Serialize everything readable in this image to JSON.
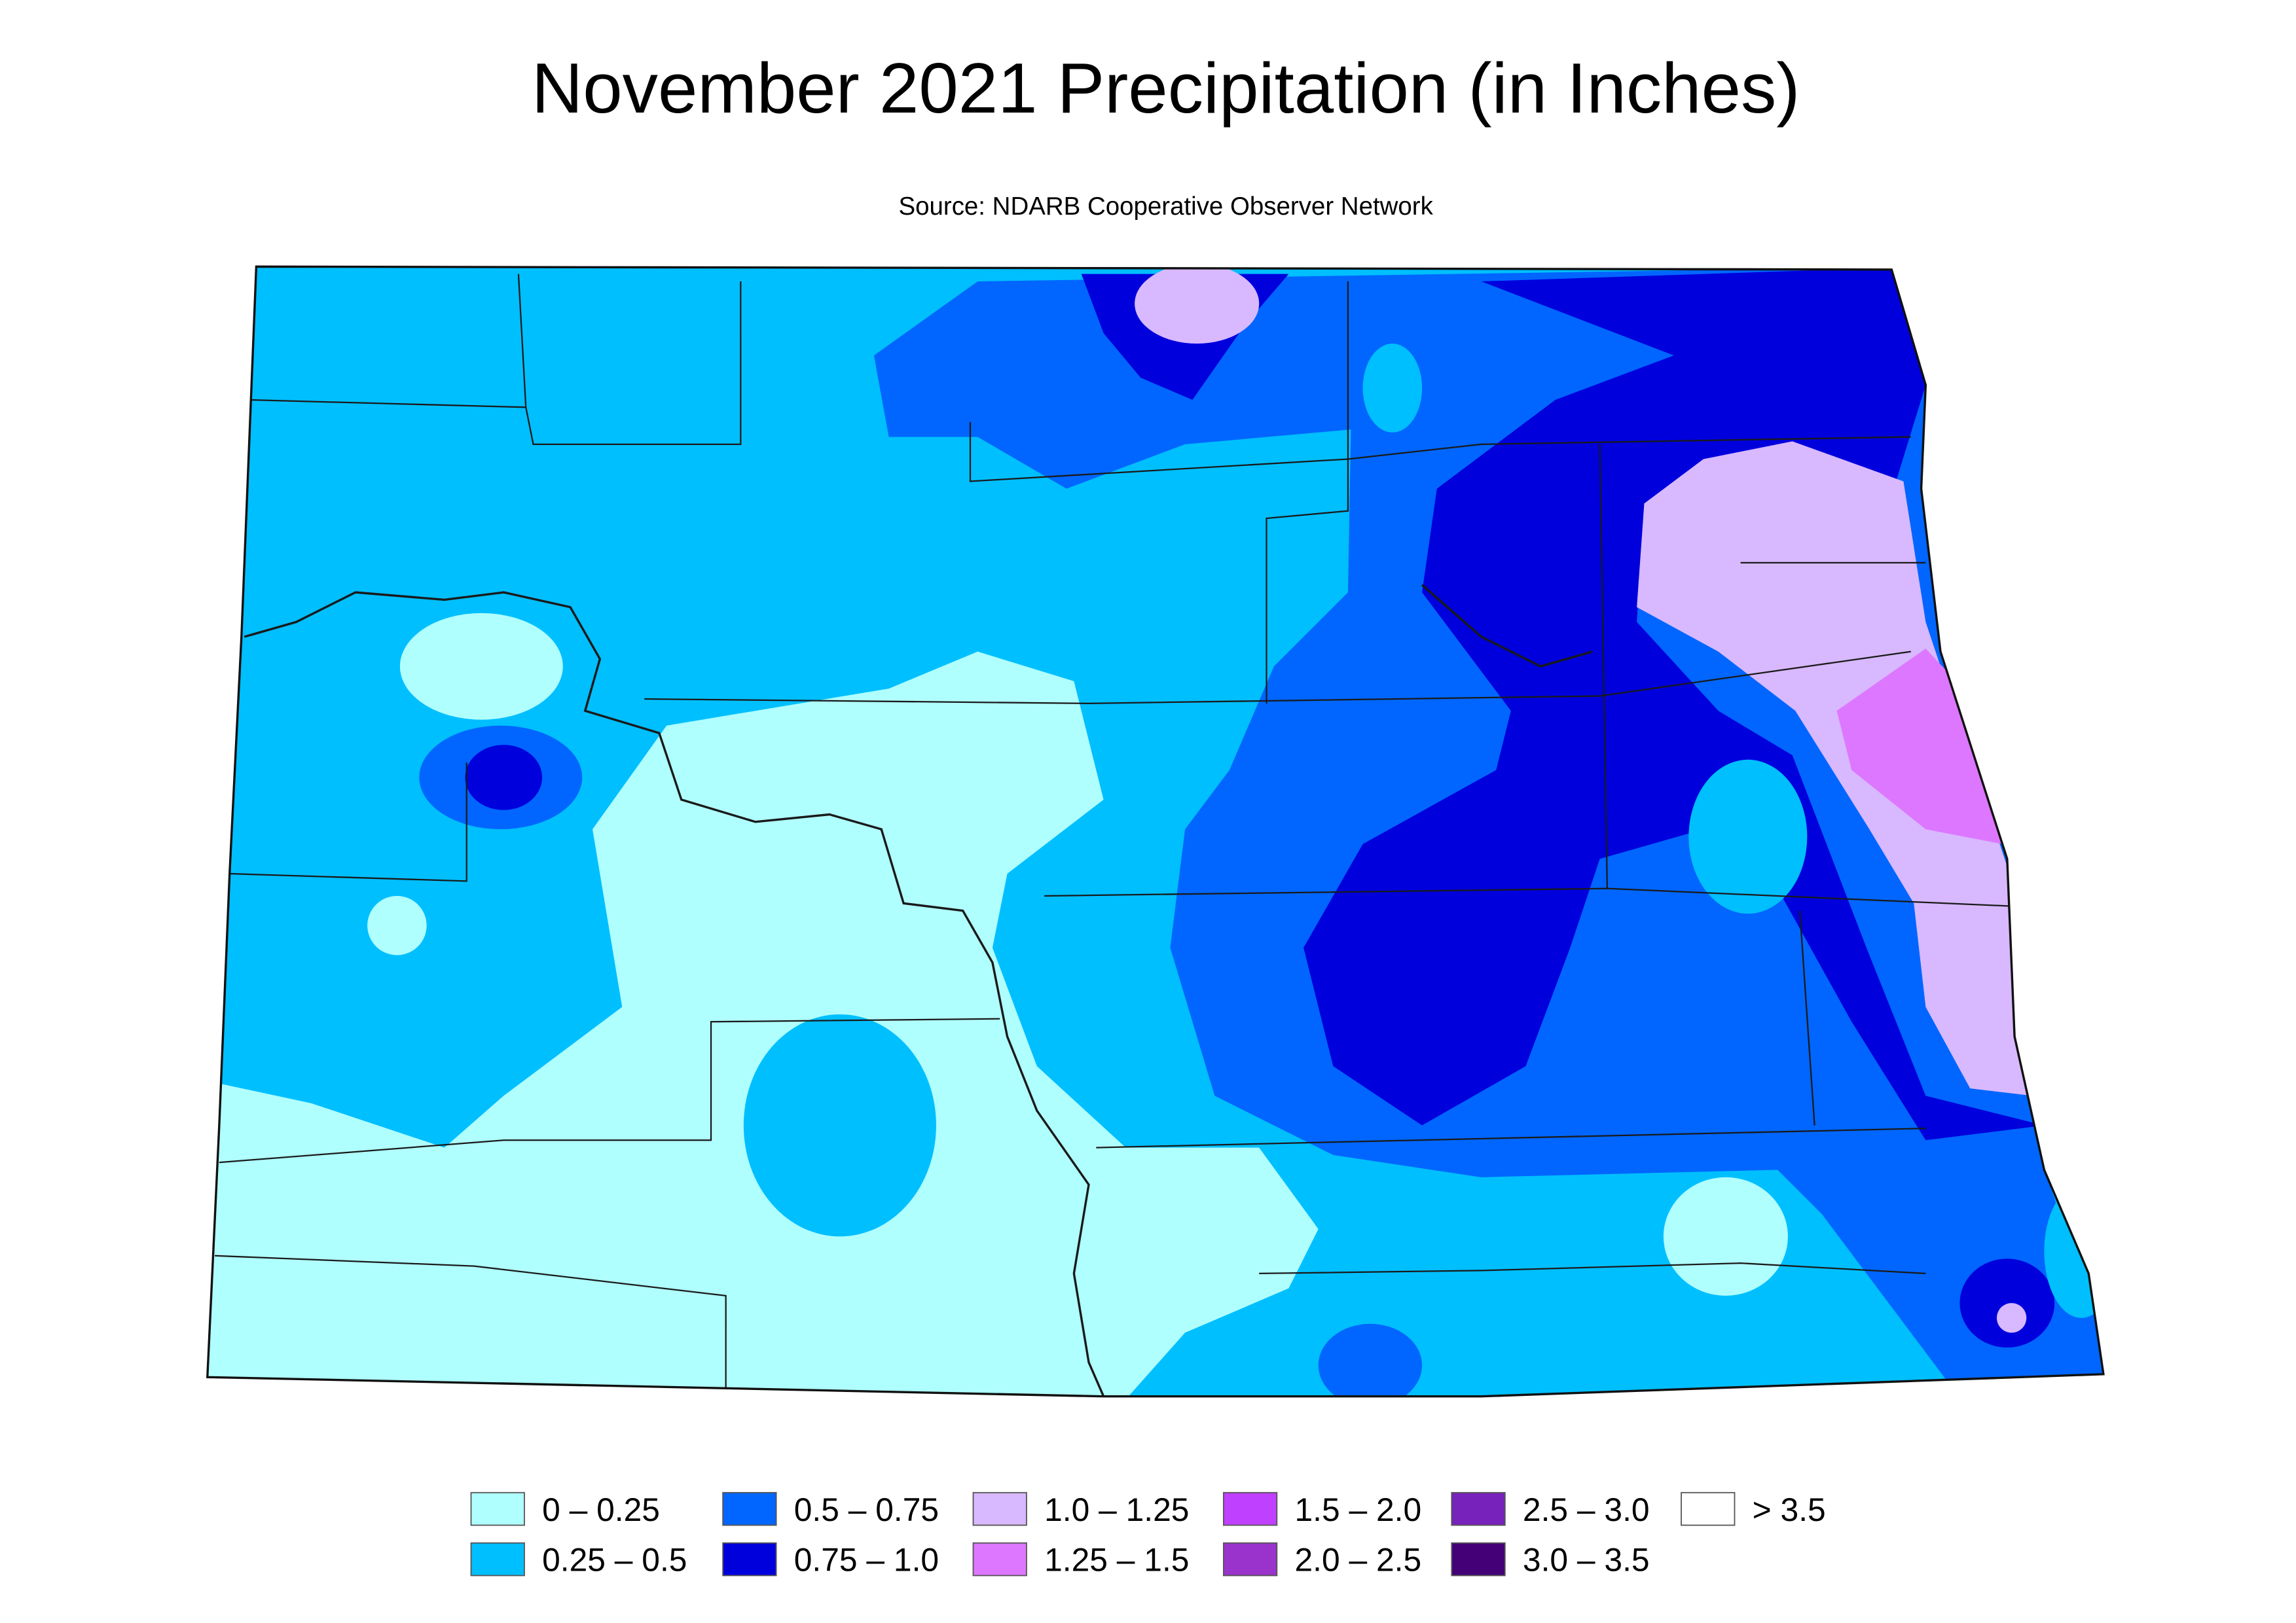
{
  "header": {
    "title": "November 2021 Precipitation (in Inches)",
    "subtitle": "Source: NDARB Cooperative Observer Network"
  },
  "legend": {
    "items": [
      {
        "label": "0 – 0.25",
        "color": "#b0ffff"
      },
      {
        "label": "0.25 – 0.5",
        "color": "#00bfff"
      },
      {
        "label": "0.5 – 0.75",
        "color": "#0066ff"
      },
      {
        "label": "0.75 – 1.0",
        "color": "#0000dd"
      },
      {
        "label": "1.0 – 1.25",
        "color": "#d8b8ff"
      },
      {
        "label": "1.25 – 1.5",
        "color": "#dd77ff"
      },
      {
        "label": "1.5 – 2.0",
        "color": "#c040ff"
      },
      {
        "label": "2.0 – 2.5",
        "color": "#9933cc"
      },
      {
        "label": "2.5 – 3.0",
        "color": "#7722bb"
      },
      {
        "label": "3.0 – 3.5",
        "color": "#440077"
      },
      {
        "label": ">  3.5",
        "color": "#ffffff"
      }
    ]
  }
}
